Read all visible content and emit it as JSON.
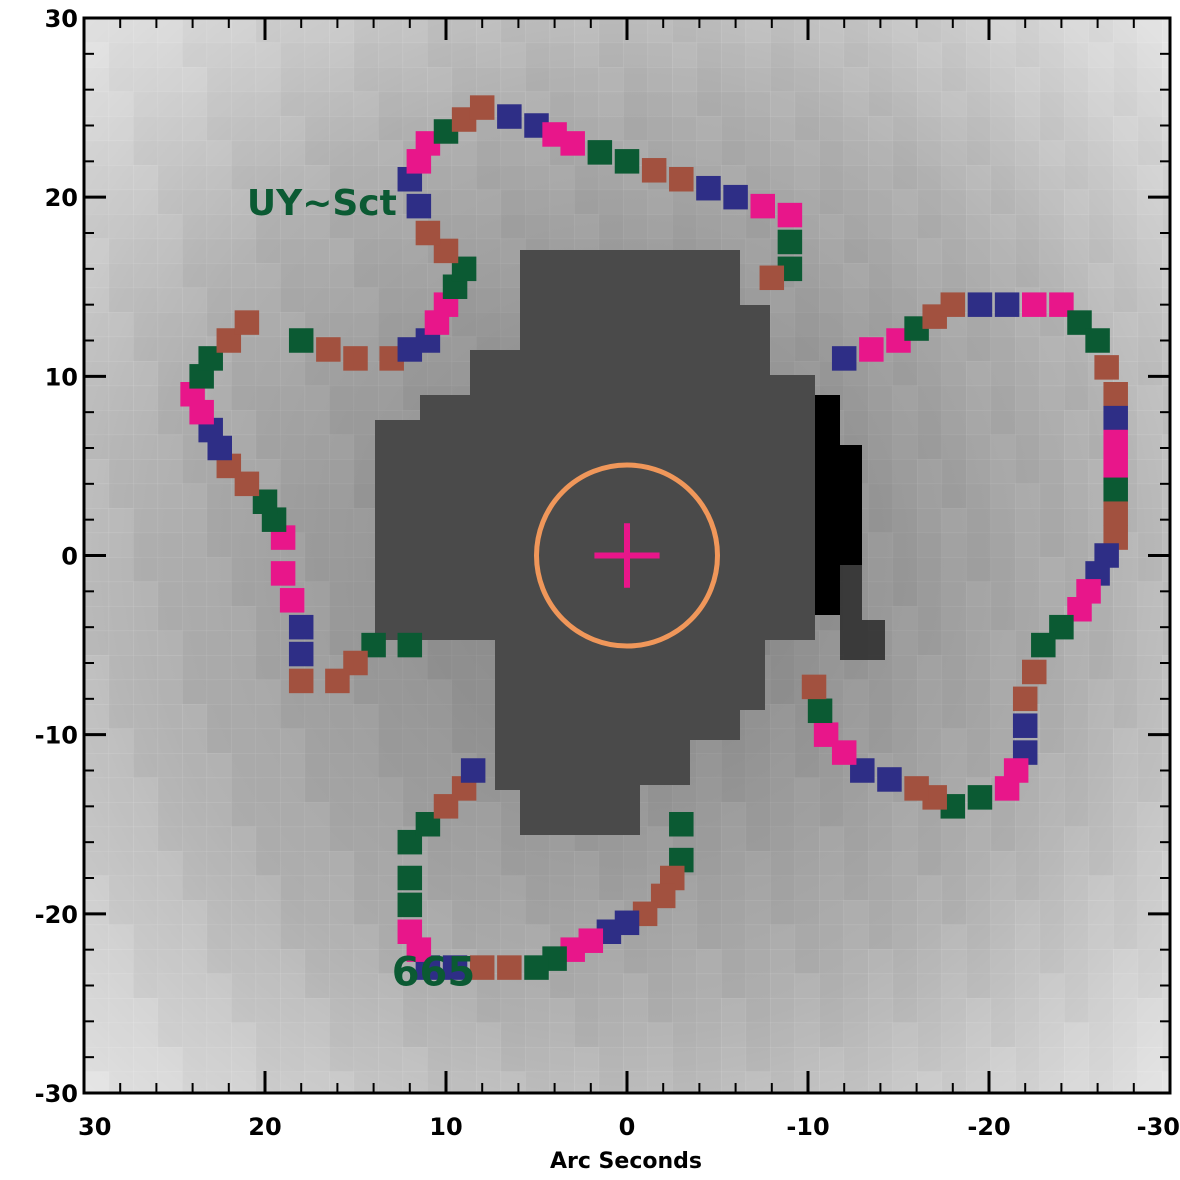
{
  "chart_data": {
    "type": "heatmap",
    "title": "",
    "xlabel": "Arc Seconds",
    "ylabel": "",
    "xlim": [
      30,
      -30
    ],
    "ylim": [
      -30,
      30
    ],
    "x_ticks": [
      30,
      20,
      10,
      0,
      -10,
      -20,
      -30
    ],
    "x_tick_labels": [
      "30",
      "20",
      "10",
      "0",
      "-10",
      "-20",
      "-30"
    ],
    "y_ticks": [
      30,
      20,
      10,
      0,
      -10,
      -20,
      -30
    ],
    "y_tick_labels": [
      "30",
      "20",
      "10",
      "0",
      "-10",
      "-20",
      "-30"
    ],
    "grid": false,
    "annotations": [
      {
        "text": "UY~Sct",
        "x": 21,
        "y": 19
      },
      {
        "text": "665",
        "x": 13,
        "y": -24
      }
    ],
    "target_circle": {
      "center": [
        0,
        0
      ],
      "radius": 5
    },
    "center_marker": {
      "x": 0,
      "y": 0,
      "half_size": 1.8
    },
    "contour_colors": [
      "#0b5a33",
      "#e8168a",
      "#2e2e86",
      "#a2513f"
    ],
    "background_colors": {
      "center": "#4a4a4a",
      "mid": "#8a8a8a",
      "edge": "#d8d8d8",
      "dark_patch": "#000000"
    },
    "circle_color": "#f0975a",
    "marker_color": "#e8168a"
  }
}
